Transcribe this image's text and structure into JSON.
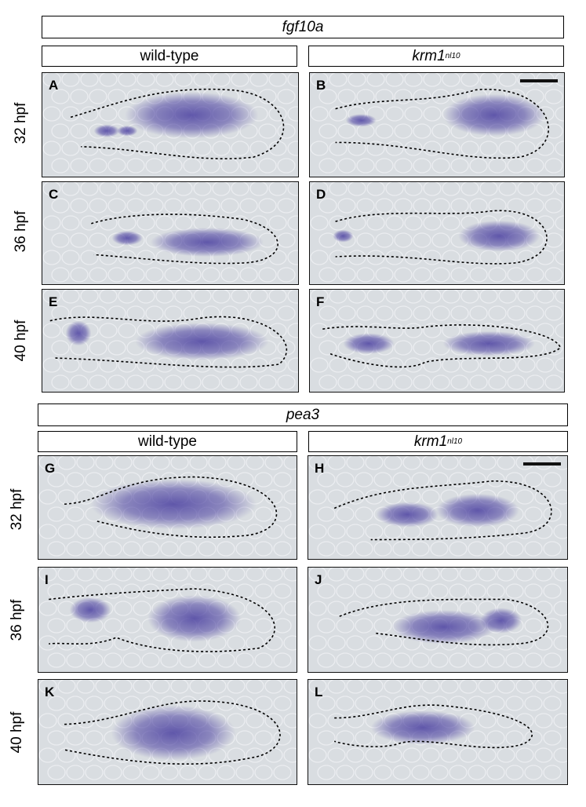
{
  "sections": [
    {
      "gene": "fgf10a",
      "wt_label": "wild-type",
      "mut_label": "krm1",
      "mut_sup": "nl10"
    },
    {
      "gene": "pea3",
      "wt_label": "wild-type",
      "mut_label": "krm1",
      "mut_sup": "nl10"
    }
  ],
  "rows": [
    "32 hpf",
    "36 hpf",
    "40 hpf",
    "32 hpf",
    "36 hpf",
    "40 hpf"
  ],
  "panels": [
    {
      "letter": "A",
      "genotype": "wild-type",
      "stage": "32 hpf",
      "gene": "fgf10a"
    },
    {
      "letter": "B",
      "genotype": "krm1 nl10",
      "stage": "32 hpf",
      "gene": "fgf10a"
    },
    {
      "letter": "C",
      "genotype": "wild-type",
      "stage": "36 hpf",
      "gene": "fgf10a"
    },
    {
      "letter": "D",
      "genotype": "krm1 nl10",
      "stage": "36 hpf",
      "gene": "fgf10a"
    },
    {
      "letter": "E",
      "genotype": "wild-type",
      "stage": "40 hpf",
      "gene": "fgf10a"
    },
    {
      "letter": "F",
      "genotype": "krm1 nl10",
      "stage": "40 hpf",
      "gene": "fgf10a"
    },
    {
      "letter": "G",
      "genotype": "wild-type",
      "stage": "32 hpf",
      "gene": "pea3"
    },
    {
      "letter": "H",
      "genotype": "krm1 nl10",
      "stage": "32 hpf",
      "gene": "pea3"
    },
    {
      "letter": "I",
      "genotype": "wild-type",
      "stage": "36 hpf",
      "gene": "pea3"
    },
    {
      "letter": "J",
      "genotype": "krm1 nl10",
      "stage": "36 hpf",
      "gene": "pea3"
    },
    {
      "letter": "K",
      "genotype": "wild-type",
      "stage": "40 hpf",
      "gene": "pea3"
    },
    {
      "letter": "L",
      "genotype": "krm1 nl10",
      "stage": "40 hpf",
      "gene": "pea3"
    }
  ],
  "colors": {
    "background": "#d9dde1",
    "stain": "#4a3fa0",
    "outline": "#000000"
  }
}
